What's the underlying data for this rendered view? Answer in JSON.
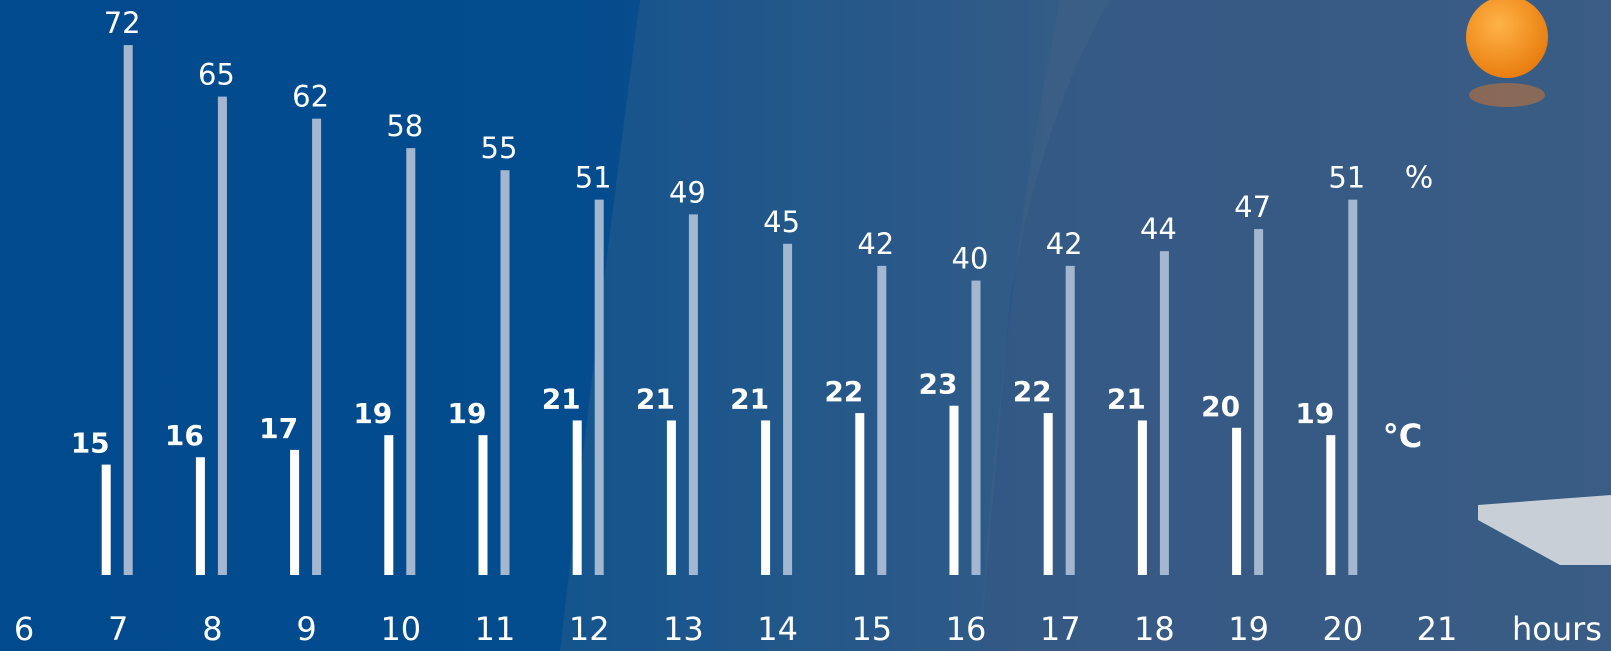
{
  "chart_data": {
    "type": "bar",
    "x_label": "hours",
    "categories": [
      "6",
      "7",
      "8",
      "9",
      "10",
      "11",
      "12",
      "13",
      "14",
      "15",
      "16",
      "17",
      "18",
      "19",
      "20",
      "21"
    ],
    "series": [
      {
        "name": "°C",
        "color": "#ffffff",
        "values": [
          null,
          15,
          16,
          17,
          19,
          19,
          21,
          21,
          21,
          22,
          23,
          22,
          21,
          20,
          19,
          null
        ]
      },
      {
        "name": "%",
        "color": "#a3b8d0",
        "values": [
          null,
          72,
          65,
          62,
          58,
          55,
          51,
          49,
          45,
          42,
          40,
          42,
          44,
          47,
          51,
          null
        ]
      }
    ]
  }
}
